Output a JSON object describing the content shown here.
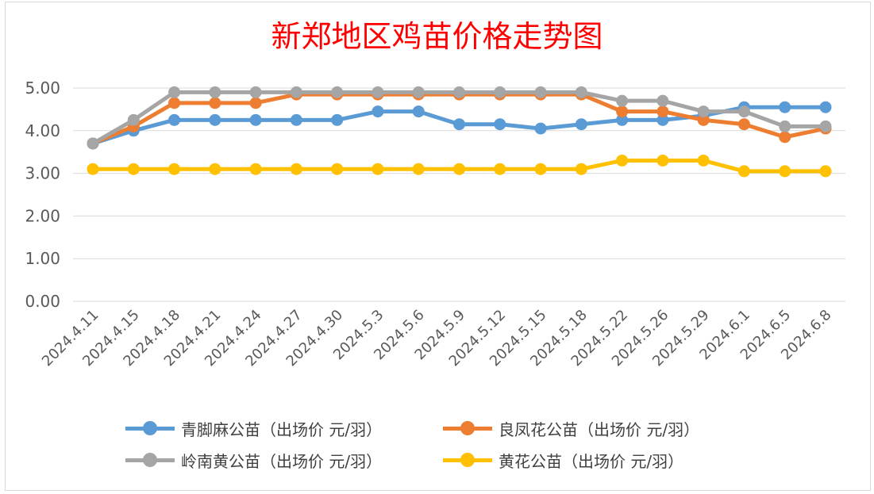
{
  "chart_data": {
    "type": "line",
    "title": "新郑地区鸡苗价格走势图",
    "xlabel": "",
    "ylabel": "",
    "ylim": [
      0,
      5
    ],
    "yticks": [
      "0.00",
      "1.00",
      "2.00",
      "3.00",
      "4.00",
      "5.00"
    ],
    "grid": true,
    "legend_position": "bottom",
    "categories": [
      "2024.4.11",
      "2024.4.15",
      "2024.4.18",
      "2024.4.21",
      "2024.4.24",
      "2024.4.27",
      "2024.4.30",
      "2024.5.3",
      "2024.5.6",
      "2024.5.9",
      "2024.5.12",
      "2024.5.15",
      "2024.5.18",
      "2024.5.22",
      "2024.5.26",
      "2024.5.29",
      "2024.6.1",
      "2024.6.5",
      "2024.6.8"
    ],
    "series": [
      {
        "name": "青脚麻公苗（出场价 元/羽）",
        "color": "#5b9bd5",
        "values": [
          3.7,
          4.0,
          4.25,
          4.25,
          4.25,
          4.25,
          4.25,
          4.45,
          4.45,
          4.15,
          4.15,
          4.05,
          4.15,
          4.25,
          4.25,
          4.35,
          4.55,
          4.55,
          4.55
        ]
      },
      {
        "name": "良凤花公苗（出场价 元/羽）",
        "color": "#ed7d31",
        "values": [
          3.7,
          4.1,
          4.65,
          4.65,
          4.65,
          4.85,
          4.85,
          4.85,
          4.85,
          4.85,
          4.85,
          4.85,
          4.85,
          4.45,
          4.45,
          4.25,
          4.15,
          3.85,
          4.05
        ]
      },
      {
        "name": "岭南黄公苗（出场价 元/羽）",
        "color": "#a5a5a5",
        "values": [
          3.7,
          4.25,
          4.9,
          4.9,
          4.9,
          4.9,
          4.9,
          4.9,
          4.9,
          4.9,
          4.9,
          4.9,
          4.9,
          4.7,
          4.7,
          4.45,
          4.45,
          4.1,
          4.1
        ]
      },
      {
        "name": "黄花公苗（出场价 元/羽）",
        "color": "#ffc000",
        "values": [
          3.1,
          3.1,
          3.1,
          3.1,
          3.1,
          3.1,
          3.1,
          3.1,
          3.1,
          3.1,
          3.1,
          3.1,
          3.1,
          3.3,
          3.3,
          3.3,
          3.05,
          3.05,
          3.05
        ]
      }
    ]
  }
}
